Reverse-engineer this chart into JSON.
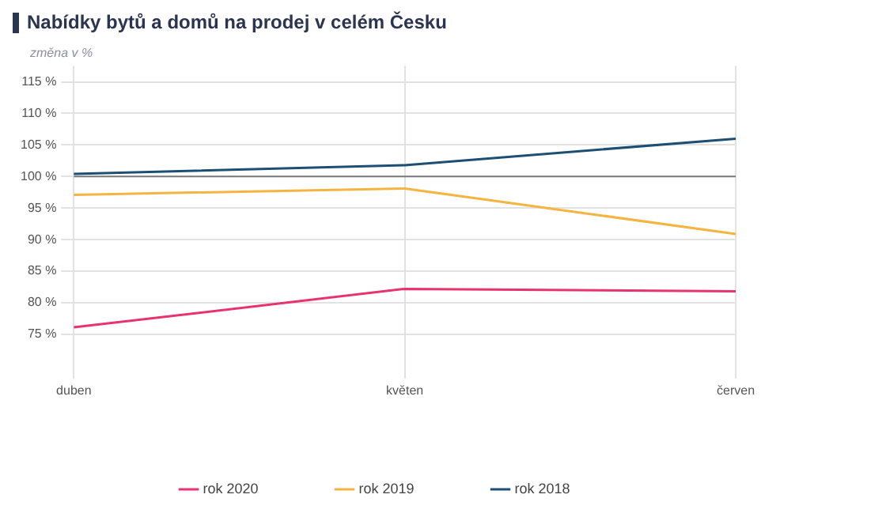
{
  "chart_data": {
    "type": "line",
    "title": "Nabídky bytů a domů na prodej v celém Česku",
    "ylabel": "změna v %",
    "categories": [
      "duben",
      "květen",
      "červen"
    ],
    "series": [
      {
        "name": "rok 2020",
        "color": "#e8336e",
        "values": [
          76.1,
          82.2,
          81.8
        ]
      },
      {
        "name": "rok 2019",
        "color": "#f5b440",
        "values": [
          97.1,
          98.1,
          90.9
        ]
      },
      {
        "name": "rok 2018",
        "color": "#1d4e74",
        "values": [
          100.4,
          101.8,
          106.0
        ]
      }
    ],
    "ylim": [
      70,
      117.5
    ],
    "yticks": [
      {
        "value": 75,
        "label": "75 %"
      },
      {
        "value": 80,
        "label": "80 %"
      },
      {
        "value": 85,
        "label": "85 %"
      },
      {
        "value": 90,
        "label": "90 %"
      },
      {
        "value": 95,
        "label": "95 %"
      },
      {
        "value": 100,
        "label": "100 %"
      },
      {
        "value": 105,
        "label": "105 %"
      },
      {
        "value": 110,
        "label": "110 %"
      },
      {
        "value": 115,
        "label": "115 %"
      }
    ],
    "ref_lines": [
      {
        "axis": "y",
        "value": 100,
        "color": "#7a7a7a"
      }
    ],
    "grid": true,
    "legend": "bottom",
    "marker": "none",
    "line_style": "solid"
  }
}
